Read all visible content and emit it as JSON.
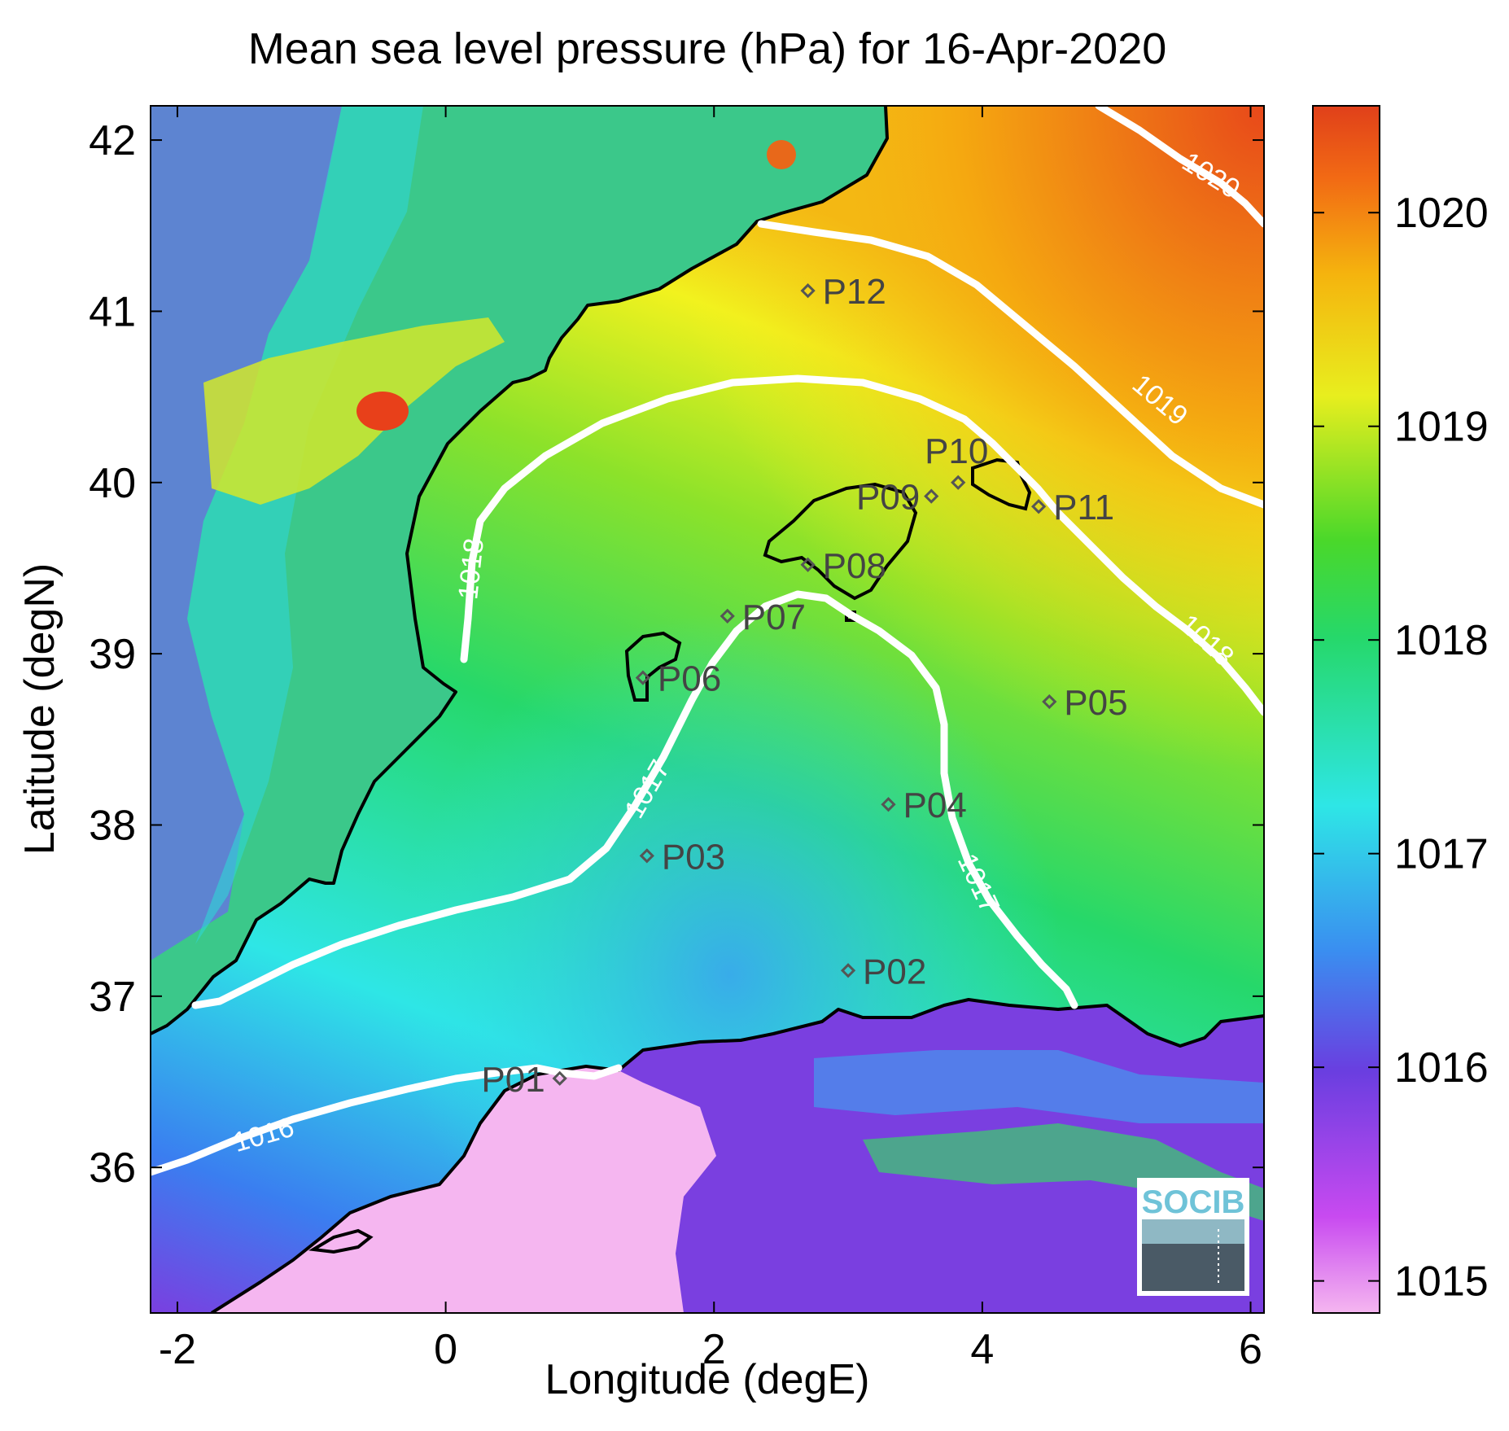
{
  "title": "Mean sea level pressure (hPa) for 16-Apr-2020",
  "xlabel": "Longitude (degE)",
  "ylabel": "Latitude (degN)",
  "x_ticks": [
    "-2",
    "0",
    "2",
    "4",
    "6"
  ],
  "y_ticks": [
    "36",
    "37",
    "38",
    "39",
    "40",
    "41",
    "42"
  ],
  "colorbar_ticks": [
    "1015",
    "1016",
    "1017",
    "1018",
    "1019",
    "1020"
  ],
  "contour_labels": [
    "1016",
    "1017",
    "1017",
    "1018",
    "1018",
    "1019",
    "1020"
  ],
  "logo": "SOCIB",
  "colors": {
    "low": "#f5b6f0",
    "mid_low": "#7a3fe0",
    "mid": "#2ee6e0",
    "mid_high": "#3ad23a",
    "high": "#f2f21e",
    "max": "#e84a1a"
  },
  "chart_data": {
    "type": "heatmap",
    "title": "Mean sea level pressure (hPa) for 16-Apr-2020",
    "xlabel": "Longitude (degE)",
    "ylabel": "Latitude (degN)",
    "xlim": [
      -2.2,
      6.1
    ],
    "ylim": [
      35.15,
      42.2
    ],
    "colorbar_range": [
      1014.85,
      1020.5
    ],
    "contour_levels": [
      1016,
      1017,
      1018,
      1019,
      1020
    ],
    "stations": [
      {
        "name": "P01",
        "lon": 0.85,
        "lat": 36.52
      },
      {
        "name": "P02",
        "lon": 3.0,
        "lat": 37.15
      },
      {
        "name": "P03",
        "lon": 1.5,
        "lat": 37.82
      },
      {
        "name": "P04",
        "lon": 3.3,
        "lat": 38.12
      },
      {
        "name": "P05",
        "lon": 4.5,
        "lat": 38.72
      },
      {
        "name": "P06",
        "lon": 1.47,
        "lat": 38.86
      },
      {
        "name": "P07",
        "lon": 2.1,
        "lat": 39.22
      },
      {
        "name": "P08",
        "lon": 2.7,
        "lat": 39.52
      },
      {
        "name": "P09",
        "lon": 3.62,
        "lat": 39.92
      },
      {
        "name": "P10",
        "lon": 3.82,
        "lat": 40.0
      },
      {
        "name": "P11",
        "lon": 4.42,
        "lat": 39.86
      },
      {
        "name": "P12",
        "lon": 2.7,
        "lat": 41.12
      }
    ]
  }
}
